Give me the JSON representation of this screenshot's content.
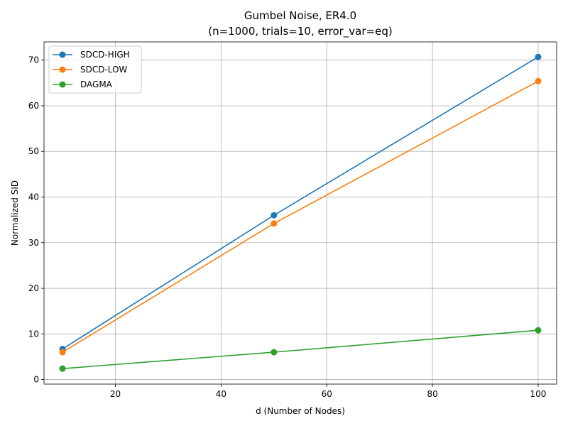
{
  "chart_data": {
    "type": "line",
    "title": "Gumbel Noise, ER4.0",
    "subtitle": "(n=1000, trials=10, error_var=eq)",
    "xlabel": "d (Number of Nodes)",
    "ylabel": "Normalized SID",
    "xlim": [
      6.5,
      103.5
    ],
    "ylim": [
      -1.0,
      74.0
    ],
    "xticks": [
      20,
      40,
      60,
      80,
      100
    ],
    "yticks": [
      0,
      10,
      20,
      30,
      40,
      50,
      60,
      70
    ],
    "grid": true,
    "legend_position": "top-left",
    "x": [
      10,
      50,
      100
    ],
    "series": [
      {
        "name": "SDCD-HIGH",
        "color": "#1f77b4",
        "values": [
          6.7,
          36.0,
          70.7
        ]
      },
      {
        "name": "SDCD-LOW",
        "color": "#ff7f0e",
        "values": [
          6.0,
          34.2,
          65.4
        ]
      },
      {
        "name": "DAGMA",
        "color": "#2ca02c",
        "values": [
          2.4,
          6.0,
          10.8
        ]
      }
    ]
  }
}
